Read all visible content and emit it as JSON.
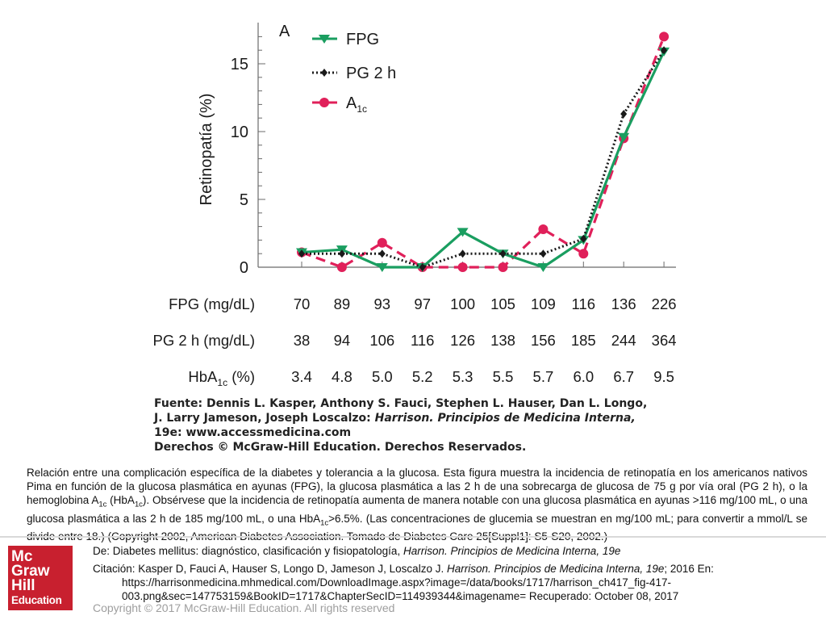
{
  "chart_data": {
    "type": "line",
    "panel_label": "A",
    "ylabel": "Retinopatía (%)",
    "ylim": [
      0,
      17.5
    ],
    "yticks": [
      "0",
      "5",
      "10",
      "15"
    ],
    "grid": false,
    "legend_position": "top-left",
    "categories": [
      "1",
      "2",
      "3",
      "4",
      "5",
      "6",
      "7",
      "8",
      "9",
      "10"
    ],
    "series": [
      {
        "name": "FPG",
        "name_sub": "",
        "color": "#1a9e60",
        "style": "solid",
        "marker": "triangle",
        "values": [
          1.1,
          1.3,
          0.0,
          0.0,
          2.6,
          1.0,
          0.0,
          2.0,
          9.6,
          15.9
        ]
      },
      {
        "name": "PG 2 h",
        "name_sub": "",
        "color": "#1a1a1a",
        "style": "dotted",
        "marker": "diamond",
        "values": [
          1.0,
          1.0,
          1.0,
          0.0,
          1.0,
          1.0,
          1.0,
          2.1,
          11.3,
          16.0
        ]
      },
      {
        "name": "A",
        "name_sub": "1c",
        "color": "#e0205a",
        "style": "dashed",
        "marker": "circle",
        "values": [
          1.1,
          0.0,
          1.8,
          0.0,
          0.0,
          0.0,
          2.8,
          1.0,
          9.5,
          17.0
        ]
      }
    ],
    "table": [
      {
        "label": "FPG (mg/dL)",
        "label_sub": "",
        "label_after": "",
        "values": [
          "70",
          "89",
          "93",
          "97",
          "100",
          "105",
          "109",
          "116",
          "136",
          "226"
        ]
      },
      {
        "label": "PG 2 h (mg/dL)",
        "label_sub": "",
        "label_after": "",
        "values": [
          "38",
          "94",
          "106",
          "116",
          "126",
          "138",
          "156",
          "185",
          "244",
          "364"
        ]
      },
      {
        "label": "HbA",
        "label_sub": "1c",
        "label_after": " (%)",
        "values": [
          "3.4",
          "4.8",
          "5.0",
          "5.2",
          "5.3",
          "5.5",
          "5.7",
          "6.0",
          "6.7",
          "9.5"
        ]
      }
    ]
  },
  "source": {
    "line1": "Fuente: Dennis L. Kasper, Anthony S. Fauci, Stephen L. Hauser, Dan L. Longo,",
    "line2a": "J. Larry Jameson, Joseph Loscalzo: ",
    "line2b": "Harrison. Principios de Medicina Interna,",
    "line3": "19e: www.accessmedicina.com",
    "line4": "Derechos © McGraw-Hill Education. Derechos Reservados."
  },
  "caption": {
    "p1": "Relación entre una complicación específica de la diabetes y tolerancia a la glucosa. Esta figura muestra la incidencia de retinopatía en los americanos nativos Pima en función de la glucosa plasmática en ayunas (FPG), la glucosa plasmática a las 2 h de una sobrecarga de glucosa de 75 g por vía oral (PG 2 h), o la hemoglobina A",
    "s1": "1c",
    "p2": " (HbA",
    "s2": "1c",
    "p3": "). Obsérvese que la incidencia de retinopatía aumenta de manera notable con una glucosa plasmática en ayunas >116 mg/100 mL, o una glucosa plasmática a las 2 h de 185 mg/100 mL, o una HbA",
    "s3": "1c",
    "p4": ">6.5%. (Las concentraciones de glucemia se muestran en mg/100 mL; para convertir a mmol/L se divide entre 18.) (Copyright 2002, American Diabetes Association. Tomado de Diabetes Care 25[Suppl1]: S5-S20, 2002.)"
  },
  "logo": {
    "line1": "Mc",
    "line2": "Graw",
    "line3": "Hill",
    "line4": "Education"
  },
  "footer": {
    "de_prefix": "De: Diabetes mellitus: diagnóstico, clasificación y fisiopatología, ",
    "de_title": "Harrison. Principios de Medicina Interna, 19e",
    "cit_prefix": "Citación: Kasper D, Fauci A, Hauser S, Longo D, Jameson J, Loscalzo J",
    "cit_dot": ". ",
    "cit_title": "Harrison. Principios de Medicina Interna, 19e",
    "cit_suffix": "; 2016 En:",
    "url1": "https://harrisonmedicina.mhmedical.com/DownloadImage.aspx?image=/data/books/1717/harrison_ch417_fig-417-",
    "url2": "003.png&sec=147753159&BookID=1717&ChapterSecID=114939344&imagename= Recuperado: October 08, 2017",
    "copyright": "Copyright © 2017 McGraw-Hill Education. All rights reserved"
  }
}
